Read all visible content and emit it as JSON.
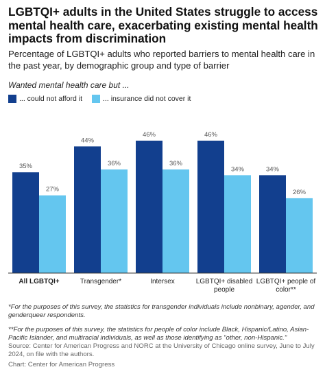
{
  "title": "LGBTQI+ adults in the United States struggle to access mental health care, exacerbating existing mental health impacts from discrimination",
  "subtitle": "Percentage of LGBTQI+ adults who reported barriers to mental health care in the past year, by demographic group and type of barrier",
  "prompt": "Wanted mental health care but ...",
  "colors": {
    "afford": "#123f8e",
    "insurance": "#64c6ef"
  },
  "chart_data": {
    "type": "bar",
    "categories": [
      "All LGBTQI+",
      "Transgender*",
      "Intersex",
      "LGBTQI+ disabled people",
      "LGBTQI+ people of color**"
    ],
    "category_lines": [
      [
        "All LGBTQI+"
      ],
      [
        "Transgender*"
      ],
      [
        "Intersex"
      ],
      [
        "LGBTQI+ disabled",
        "people"
      ],
      [
        "LGBTQI+ people of",
        "color**"
      ]
    ],
    "bold_category": "All LGBTQI+",
    "series": [
      {
        "name": "... could not afford it",
        "values": [
          35,
          44,
          46,
          46,
          34
        ],
        "labels": [
          "35%",
          "44%",
          "46%",
          "46%",
          "34%"
        ]
      },
      {
        "name": "... insurance did not cover it",
        "values": [
          27,
          36,
          36,
          34,
          26
        ],
        "labels": [
          "27%",
          "36%",
          "36%",
          "34%",
          "26%"
        ]
      }
    ],
    "ylim": [
      0,
      50
    ]
  },
  "notes": {
    "transgender": "*For the purposes of this survey, the statistics for transgender individuals include nonbinary, agender, and genderqueer respondents.",
    "poc": "**For the purposes of this survey, the statistics for people of color include Black, Hispanic/Latino, Asian-Pacific Islander, and multiracial individuals, as well as those identifying as \"other, non-Hispanic.\"",
    "source": "Source: Center for American Progress and NORC at the University of Chicago online survey, June to July 2024, on file with the authors.",
    "credit": "Chart: Center for American Progress"
  }
}
